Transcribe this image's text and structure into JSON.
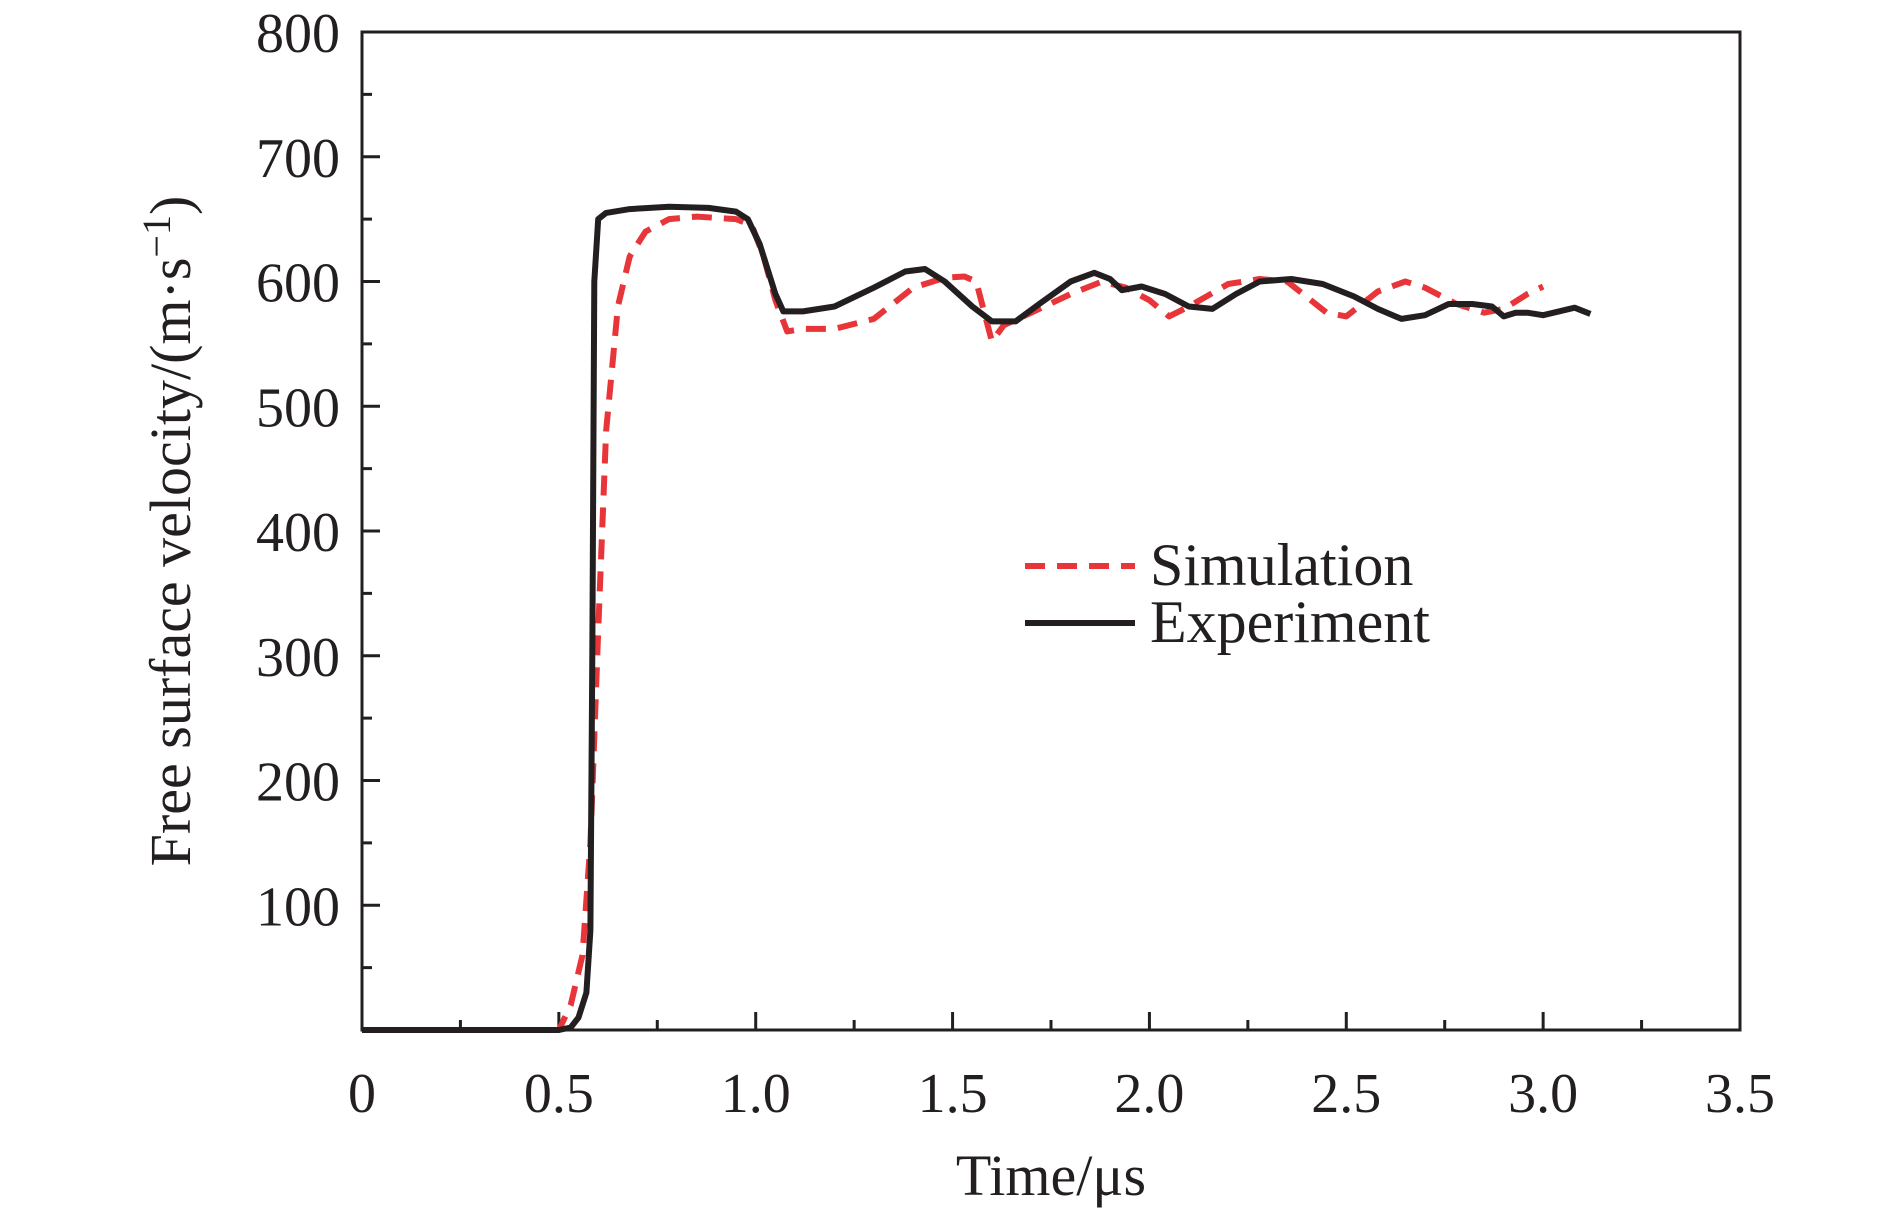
{
  "chart_data": {
    "type": "line",
    "title": "",
    "xlabel": "Time/μs",
    "ylabel": "Free surface velocity/(m·s",
    "ylabel_superscript": "−1",
    "ylabel_suffix": ")",
    "xlim": [
      0,
      3.5
    ],
    "ylim": [
      0,
      800
    ],
    "x_ticks": [
      "0",
      "0.5",
      "1.0",
      "1.5",
      "2.0",
      "2.5",
      "3.0",
      "3.5"
    ],
    "y_ticks": [
      "100",
      "200",
      "300",
      "400",
      "500",
      "600",
      "700",
      "800"
    ],
    "grid": false,
    "legend_position": "center-right",
    "series": [
      {
        "name": "Simulation",
        "color": "#e8353a",
        "style": "dashed",
        "points": [
          [
            0.0,
            0
          ],
          [
            0.5,
            0
          ],
          [
            0.53,
            20
          ],
          [
            0.56,
            60
          ],
          [
            0.58,
            150
          ],
          [
            0.6,
            320
          ],
          [
            0.62,
            480
          ],
          [
            0.65,
            580
          ],
          [
            0.68,
            620
          ],
          [
            0.72,
            640
          ],
          [
            0.78,
            650
          ],
          [
            0.85,
            652
          ],
          [
            0.95,
            650
          ],
          [
            0.99,
            645
          ],
          [
            1.02,
            620
          ],
          [
            1.05,
            585
          ],
          [
            1.08,
            560
          ],
          [
            1.12,
            562
          ],
          [
            1.2,
            562
          ],
          [
            1.3,
            570
          ],
          [
            1.4,
            595
          ],
          [
            1.48,
            603
          ],
          [
            1.53,
            604
          ],
          [
            1.56,
            600
          ],
          [
            1.6,
            552
          ],
          [
            1.63,
            565
          ],
          [
            1.7,
            575
          ],
          [
            1.8,
            590
          ],
          [
            1.88,
            600
          ],
          [
            1.94,
            595
          ],
          [
            2.0,
            585
          ],
          [
            2.05,
            572
          ],
          [
            2.1,
            580
          ],
          [
            2.2,
            598
          ],
          [
            2.28,
            602
          ],
          [
            2.35,
            600
          ],
          [
            2.45,
            575
          ],
          [
            2.5,
            572
          ],
          [
            2.58,
            592
          ],
          [
            2.65,
            600
          ],
          [
            2.7,
            595
          ],
          [
            2.78,
            582
          ],
          [
            2.85,
            575
          ],
          [
            2.9,
            578
          ],
          [
            2.96,
            590
          ],
          [
            3.0,
            596
          ]
        ]
      },
      {
        "name": "Experiment",
        "color": "#231f20",
        "style": "solid",
        "points": [
          [
            0.0,
            0
          ],
          [
            0.45,
            0
          ],
          [
            0.5,
            0
          ],
          [
            0.53,
            2
          ],
          [
            0.55,
            10
          ],
          [
            0.57,
            30
          ],
          [
            0.58,
            80
          ],
          [
            0.585,
            300
          ],
          [
            0.59,
            600
          ],
          [
            0.6,
            650
          ],
          [
            0.62,
            655
          ],
          [
            0.68,
            658
          ],
          [
            0.78,
            660
          ],
          [
            0.88,
            659
          ],
          [
            0.95,
            656
          ],
          [
            0.98,
            650
          ],
          [
            1.01,
            630
          ],
          [
            1.05,
            590
          ],
          [
            1.07,
            576
          ],
          [
            1.12,
            576
          ],
          [
            1.2,
            580
          ],
          [
            1.3,
            595
          ],
          [
            1.38,
            608
          ],
          [
            1.43,
            610
          ],
          [
            1.48,
            600
          ],
          [
            1.55,
            580
          ],
          [
            1.6,
            568
          ],
          [
            1.66,
            568
          ],
          [
            1.72,
            582
          ],
          [
            1.8,
            600
          ],
          [
            1.86,
            607
          ],
          [
            1.9,
            602
          ],
          [
            1.93,
            593
          ],
          [
            1.98,
            596
          ],
          [
            2.04,
            590
          ],
          [
            2.1,
            580
          ],
          [
            2.16,
            578
          ],
          [
            2.22,
            590
          ],
          [
            2.28,
            600
          ],
          [
            2.36,
            602
          ],
          [
            2.44,
            598
          ],
          [
            2.52,
            588
          ],
          [
            2.58,
            578
          ],
          [
            2.64,
            570
          ],
          [
            2.7,
            573
          ],
          [
            2.76,
            582
          ],
          [
            2.82,
            582
          ],
          [
            2.87,
            580
          ],
          [
            2.9,
            572
          ],
          [
            2.93,
            575
          ],
          [
            2.96,
            575
          ],
          [
            3.0,
            573
          ],
          [
            3.04,
            576
          ],
          [
            3.08,
            579
          ],
          [
            3.12,
            574
          ]
        ]
      }
    ]
  }
}
